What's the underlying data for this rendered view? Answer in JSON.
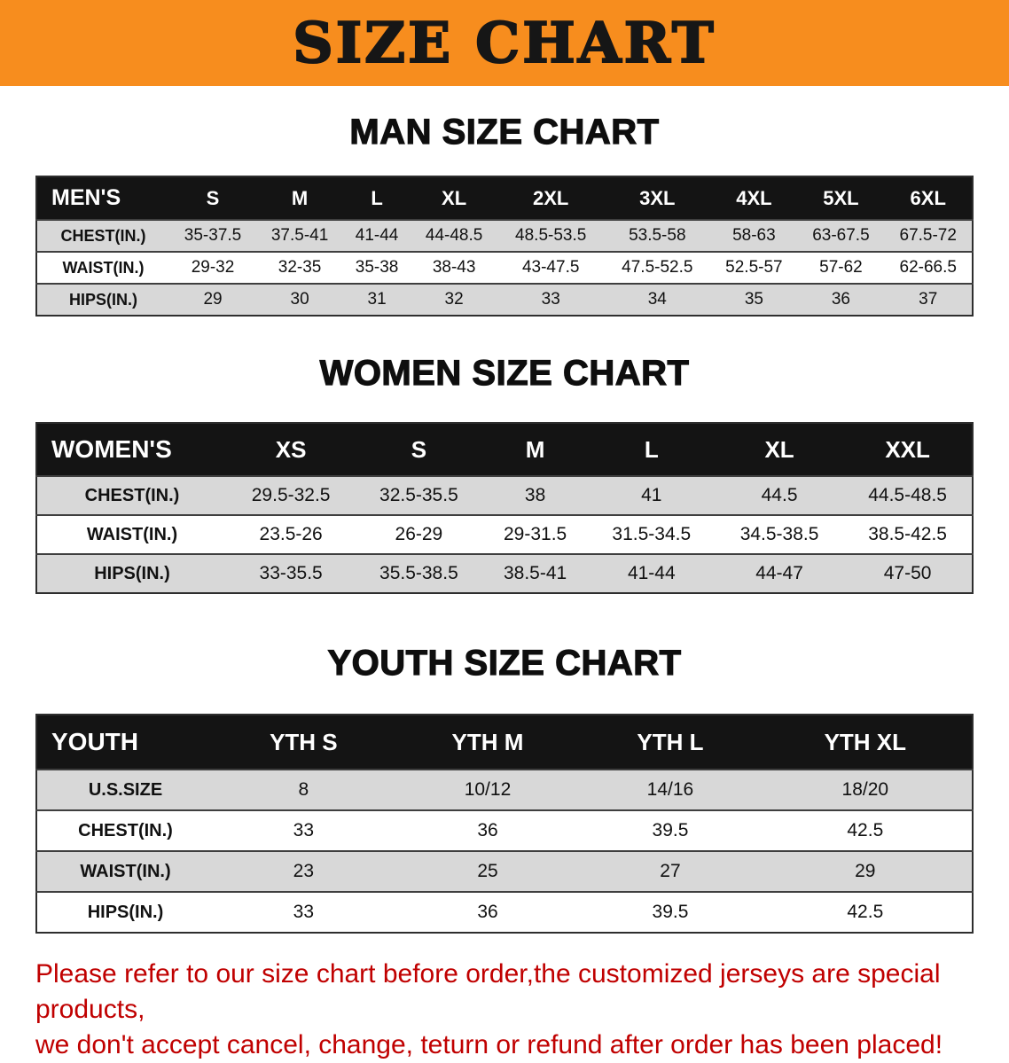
{
  "banner": {
    "title": "SIZE CHART"
  },
  "sections": [
    {
      "heading": "MAN SIZE CHART",
      "table": {
        "id": "mens",
        "header_label": "MEN'S",
        "columns": [
          "S",
          "M",
          "L",
          "XL",
          "2XL",
          "3XL",
          "4XL",
          "5XL",
          "6XL"
        ],
        "rows": [
          {
            "label": "CHEST(IN.)",
            "values": [
              "35-37.5",
              "37.5-41",
              "41-44",
              "44-48.5",
              "48.5-53.5",
              "53.5-58",
              "58-63",
              "63-67.5",
              "67.5-72"
            ]
          },
          {
            "label": "WAIST(IN.)",
            "values": [
              "29-32",
              "32-35",
              "35-38",
              "38-43",
              "43-47.5",
              "47.5-52.5",
              "52.5-57",
              "57-62",
              "62-66.5"
            ]
          },
          {
            "label": "HIPS(IN.)",
            "values": [
              "29",
              "30",
              "31",
              "32",
              "33",
              "34",
              "35",
              "36",
              "37"
            ]
          }
        ]
      }
    },
    {
      "heading": "WOMEN SIZE CHART",
      "table": {
        "id": "womens",
        "header_label": "WOMEN'S",
        "columns": [
          "XS",
          "S",
          "M",
          "L",
          "XL",
          "XXL"
        ],
        "rows": [
          {
            "label": "CHEST(IN.)",
            "values": [
              "29.5-32.5",
              "32.5-35.5",
              "38",
              "41",
              "44.5",
              "44.5-48.5"
            ]
          },
          {
            "label": "WAIST(IN.)",
            "values": [
              "23.5-26",
              "26-29",
              "29-31.5",
              "31.5-34.5",
              "34.5-38.5",
              "38.5-42.5"
            ]
          },
          {
            "label": "HIPS(IN.)",
            "values": [
              "33-35.5",
              "35.5-38.5",
              "38.5-41",
              "41-44",
              "44-47",
              "47-50"
            ]
          }
        ]
      }
    },
    {
      "heading": "YOUTH SIZE CHART",
      "table": {
        "id": "youth",
        "header_label": "YOUTH",
        "columns": [
          "YTH S",
          "YTH M",
          "YTH L",
          "YTH XL"
        ],
        "rows": [
          {
            "label": "U.S.SIZE",
            "values": [
              "8",
              "10/12",
              "14/16",
              "18/20"
            ]
          },
          {
            "label": "CHEST(IN.)",
            "values": [
              "33",
              "36",
              "39.5",
              "42.5"
            ]
          },
          {
            "label": "WAIST(IN.)",
            "values": [
              "23",
              "25",
              "27",
              "29"
            ]
          },
          {
            "label": "HIPS(IN.)",
            "values": [
              "33",
              "36",
              "39.5",
              "42.5"
            ]
          }
        ]
      }
    }
  ],
  "disclaimer": {
    "lines": [
      "Please refer to our size chart before order,the customized jerseys are special products,",
      "we don't accept cancel, change, teturn or refund after order has been placed!"
    ]
  },
  "colors": {
    "banner_bg": "#F78D1E",
    "banner_text": "#161616",
    "table_header_bg": "#141414",
    "table_header_text": "#FFFFFF",
    "shaded_row_bg": "#D8D8D8",
    "disclaimer_text": "#C00000"
  }
}
